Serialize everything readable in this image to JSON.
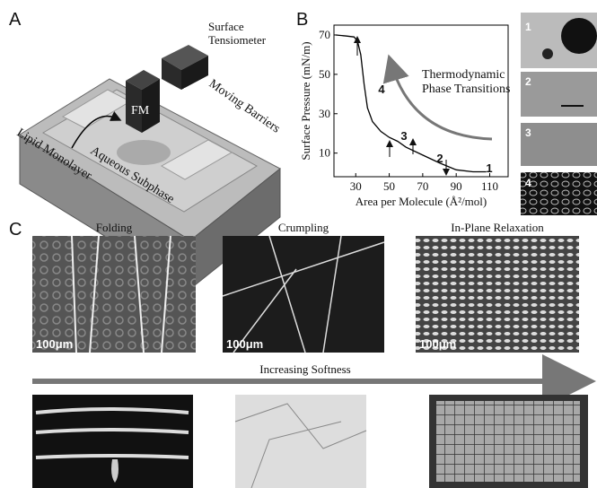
{
  "panel_labels": [
    "A",
    "B",
    "C"
  ],
  "schematic": {
    "tensiometer": "Surface\nTensiometer",
    "microscope": "FM",
    "barriers": "Moving Barriers",
    "subphase": "Aqueous Subphase",
    "monolayer": "Lipid Monolayer"
  },
  "micrographs": [
    "1",
    "2",
    "3",
    "4"
  ],
  "chart_data": {
    "type": "line",
    "x_label": "Area per Molecule (Å²/mol)",
    "y_label": "Surface Pressure (mN/m)",
    "x": [
      18,
      24,
      29,
      31,
      33,
      35,
      37,
      40,
      45,
      50,
      55,
      60,
      70,
      80,
      90,
      100,
      108
    ],
    "values": [
      70,
      69.5,
      69,
      67,
      60,
      45,
      33,
      26,
      21,
      18,
      16,
      13,
      9,
      5,
      1.5,
      0.5,
      0.5
    ],
    "color": "#000000",
    "xlim": [
      17,
      121
    ],
    "ylim": [
      -2,
      75
    ],
    "xticks": [
      30,
      50,
      70,
      90,
      110
    ],
    "yticks": [
      10,
      30,
      50,
      70
    ],
    "annotations": [
      "1",
      "2",
      "3",
      "4"
    ],
    "arrow_label": "Thermodynamic\nPhase Transitions"
  },
  "panel_c": {
    "titles": [
      "Folding",
      "Crumpling",
      "In-Plane Relaxation"
    ],
    "scale_bars": [
      "100μm",
      "100μm",
      "100μm"
    ],
    "arrow_label": "Increasing Softness"
  }
}
